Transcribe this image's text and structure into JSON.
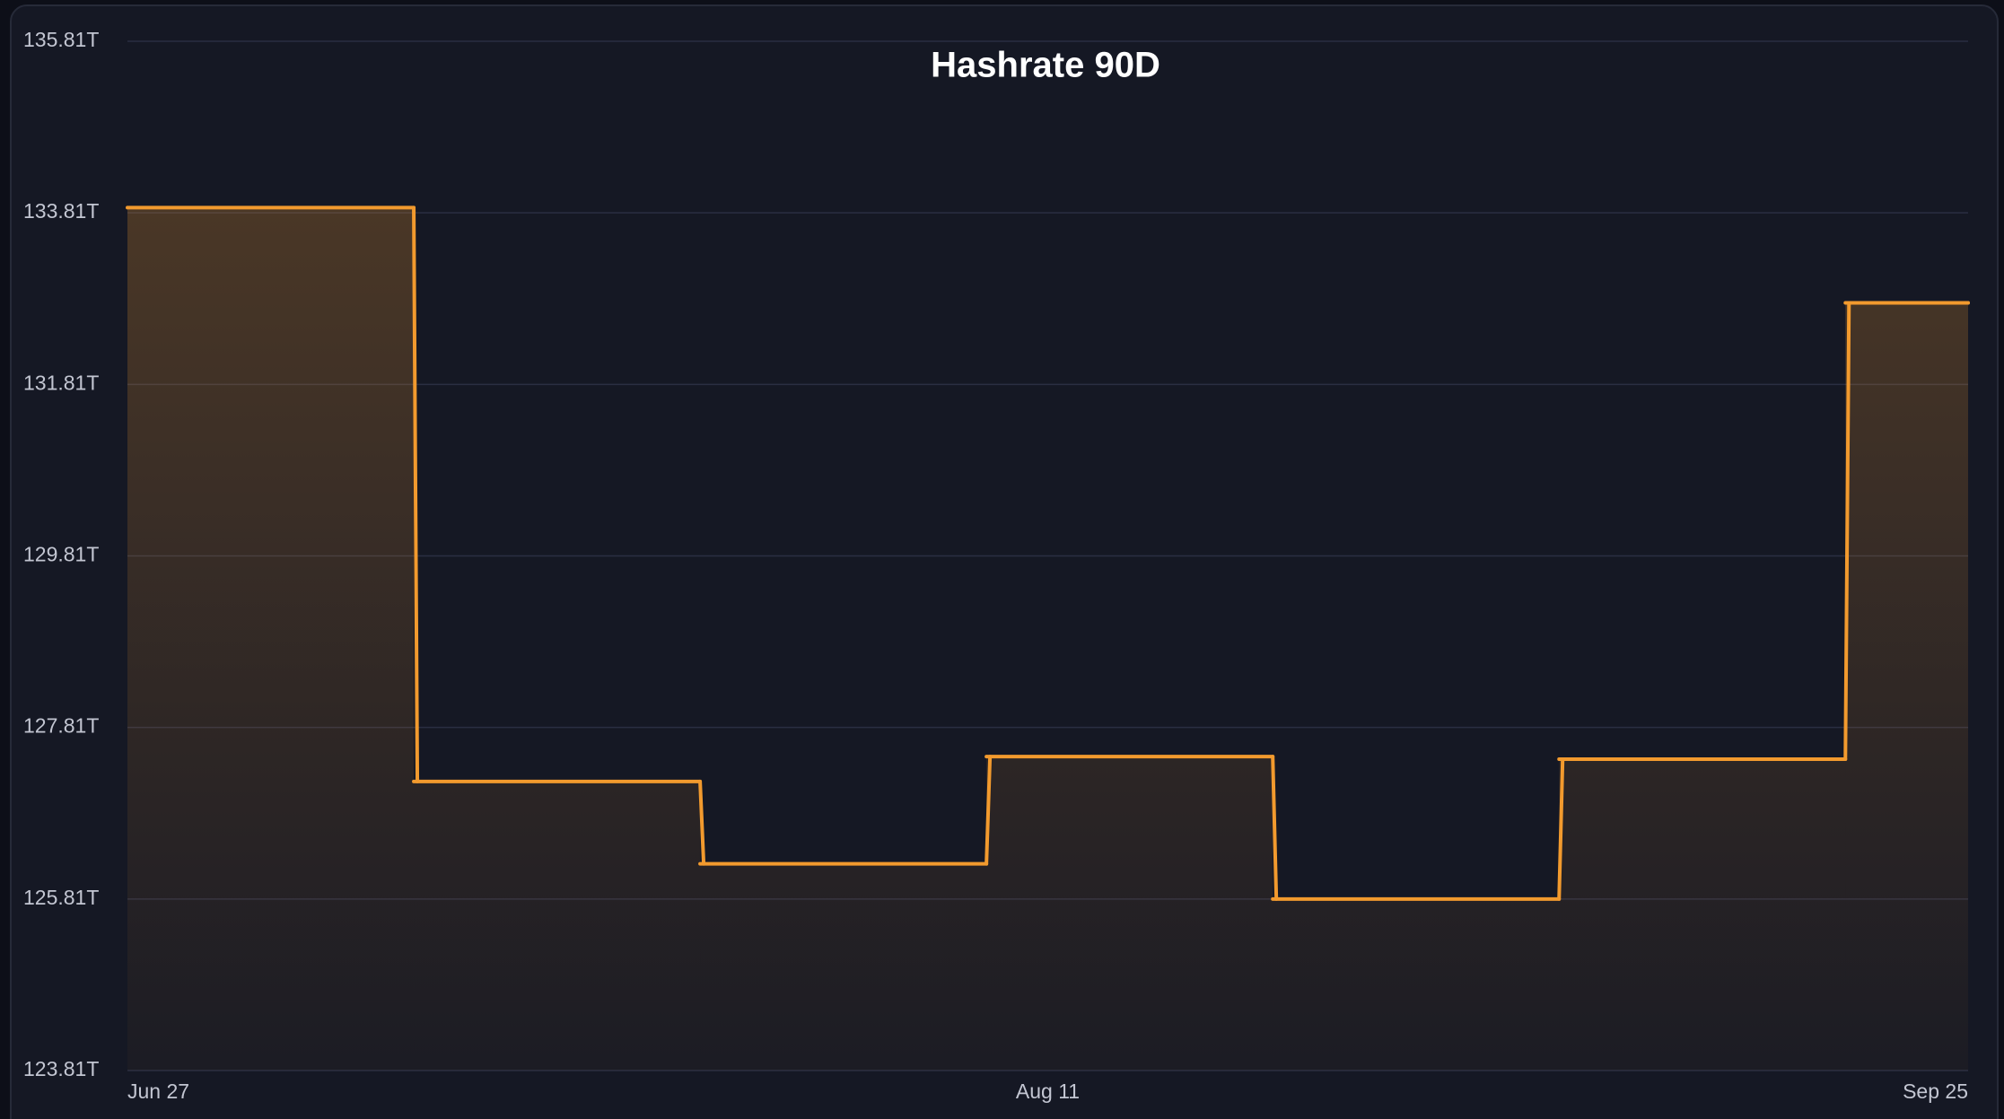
{
  "chart_data": {
    "type": "step",
    "title": "Hashrate 90D",
    "x": [
      "Jun 27",
      "Jul 11",
      "Jul 25",
      "Aug 8",
      "Aug 22",
      "Sep 5",
      "Sep 19",
      "Sep 25"
    ],
    "series": [
      {
        "color": "#f29a2e",
        "values": [
          133.87,
          127.18,
          126.22,
          127.47,
          125.81,
          127.44,
          132.76,
          132.76
        ]
      }
    ],
    "xlim": [
      "Jun 27",
      "Sep 25"
    ],
    "xticks": [
      "Jun 27",
      "Aug 11",
      "Sep 25"
    ],
    "ylim": [
      123.81,
      135.81
    ],
    "yticks": [
      {
        "value": 123.81,
        "label": "123.81T"
      },
      {
        "value": 125.81,
        "label": "125.81T"
      },
      {
        "value": 127.81,
        "label": "127.81T"
      },
      {
        "value": 129.81,
        "label": "129.81T"
      },
      {
        "value": 131.81,
        "label": "131.81T"
      },
      {
        "value": 133.81,
        "label": "133.81T"
      },
      {
        "value": 135.81,
        "label": "135.81T"
      }
    ],
    "grid": true
  }
}
